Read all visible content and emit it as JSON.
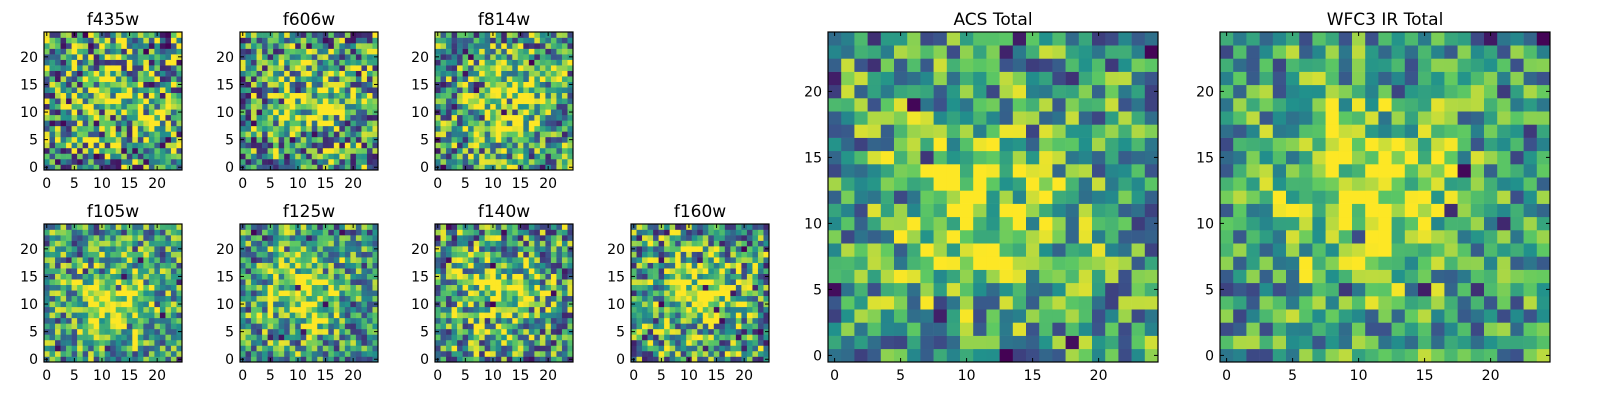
{
  "figure": {
    "colormap": [
      "#440154",
      "#3b528b",
      "#21918c",
      "#5ec962",
      "#fde725"
    ],
    "frame_color": "#000000"
  },
  "chart_data": [
    {
      "type": "heatmap",
      "title": "f435w",
      "grid": false,
      "xlim": [
        -0.5,
        24.5
      ],
      "ylim": [
        -0.5,
        24.5
      ],
      "xticks": [
        0,
        5,
        10,
        15,
        20
      ],
      "yticks": [
        0,
        5,
        10,
        15,
        20
      ],
      "value_range": [
        0,
        1
      ],
      "blob_center": [
        13,
        12
      ],
      "blob_strength": 0.25,
      "noise": 0.55,
      "seed": 11
    },
    {
      "type": "heatmap",
      "title": "f606w",
      "grid": false,
      "xlim": [
        -0.5,
        24.5
      ],
      "ylim": [
        -0.5,
        24.5
      ],
      "xticks": [
        0,
        5,
        10,
        15,
        20
      ],
      "yticks": [
        0,
        5,
        10,
        15,
        20
      ],
      "value_range": [
        0,
        1
      ],
      "blob_center": [
        12,
        12
      ],
      "blob_strength": 0.3,
      "noise": 0.5,
      "seed": 23
    },
    {
      "type": "heatmap",
      "title": "f814w",
      "grid": false,
      "xlim": [
        -0.5,
        24.5
      ],
      "ylim": [
        -0.5,
        24.5
      ],
      "xticks": [
        0,
        5,
        10,
        15,
        20
      ],
      "yticks": [
        0,
        5,
        10,
        15,
        20
      ],
      "value_range": [
        0,
        1
      ],
      "blob_center": [
        12,
        12
      ],
      "blob_strength": 0.4,
      "noise": 0.45,
      "seed": 37
    },
    {
      "type": "heatmap",
      "title": "f105w",
      "grid": false,
      "xlim": [
        -0.5,
        24.5
      ],
      "ylim": [
        -0.5,
        24.5
      ],
      "xticks": [
        0,
        5,
        10,
        15,
        20
      ],
      "yticks": [
        0,
        5,
        10,
        15,
        20
      ],
      "value_range": [
        0,
        1
      ],
      "blob_center": [
        12,
        10
      ],
      "blob_strength": 0.45,
      "noise": 0.4,
      "seed": 41
    },
    {
      "type": "heatmap",
      "title": "f125w",
      "grid": false,
      "xlim": [
        -0.5,
        24.5
      ],
      "ylim": [
        -0.5,
        24.5
      ],
      "xticks": [
        0,
        5,
        10,
        15,
        20
      ],
      "yticks": [
        0,
        5,
        10,
        15,
        20
      ],
      "value_range": [
        0,
        1
      ],
      "blob_center": [
        11,
        12
      ],
      "blob_strength": 0.4,
      "noise": 0.42,
      "seed": 53
    },
    {
      "type": "heatmap",
      "title": "f140w",
      "grid": false,
      "xlim": [
        -0.5,
        24.5
      ],
      "ylim": [
        -0.5,
        24.5
      ],
      "xticks": [
        0,
        5,
        10,
        15,
        20
      ],
      "yticks": [
        0,
        5,
        10,
        15,
        20
      ],
      "value_range": [
        0,
        1
      ],
      "blob_center": [
        11,
        12
      ],
      "blob_strength": 0.4,
      "noise": 0.45,
      "seed": 67
    },
    {
      "type": "heatmap",
      "title": "f160w",
      "grid": false,
      "xlim": [
        -0.5,
        24.5
      ],
      "ylim": [
        -0.5,
        24.5
      ],
      "xticks": [
        0,
        5,
        10,
        15,
        20
      ],
      "yticks": [
        0,
        5,
        10,
        15,
        20
      ],
      "value_range": [
        0,
        1
      ],
      "blob_center": [
        12,
        12
      ],
      "blob_strength": 0.4,
      "noise": 0.48,
      "seed": 79
    },
    {
      "type": "heatmap",
      "title": "ACS Total",
      "grid": false,
      "xlim": [
        -0.5,
        24.5
      ],
      "ylim": [
        -0.5,
        24.5
      ],
      "xticks": [
        0,
        5,
        10,
        15,
        20
      ],
      "yticks": [
        0,
        5,
        10,
        15,
        20
      ],
      "value_range": [
        0,
        1
      ],
      "blob_center": [
        11,
        11
      ],
      "blob_strength": 0.35,
      "noise": 0.38,
      "seed": 97
    },
    {
      "type": "heatmap",
      "title": "WFC3 IR Total",
      "grid": false,
      "xlim": [
        -0.5,
        24.5
      ],
      "ylim": [
        -0.5,
        24.5
      ],
      "xticks": [
        0,
        5,
        10,
        15,
        20
      ],
      "yticks": [
        0,
        5,
        10,
        15,
        20
      ],
      "value_range": [
        0,
        1
      ],
      "blob_center": [
        11,
        12
      ],
      "blob_strength": 0.45,
      "noise": 0.35,
      "seed": 103
    }
  ]
}
